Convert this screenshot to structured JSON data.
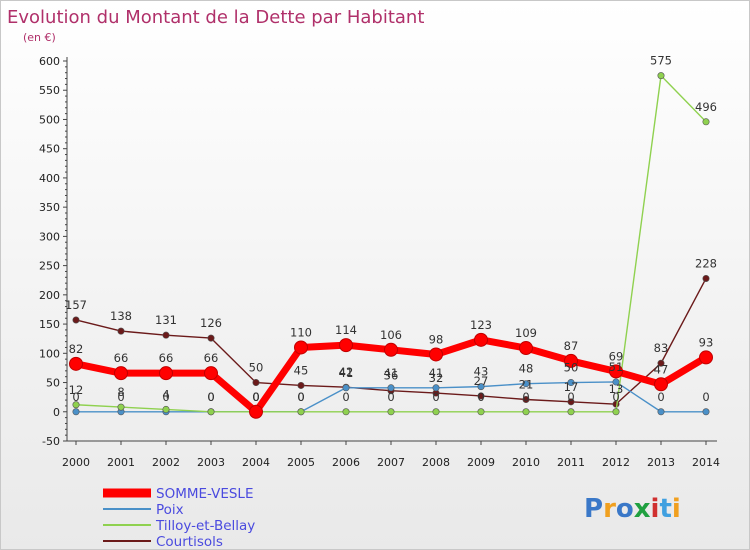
{
  "chart_data": {
    "type": "line",
    "title": "Evolution du Montant de la Dette par Habitant",
    "subtitle": "(en €)",
    "xlabel": "",
    "ylabel": "",
    "x": [
      "2000",
      "2001",
      "2002",
      "2003",
      "2004",
      "2005",
      "2006",
      "2007",
      "2008",
      "2009",
      "2010",
      "2011",
      "2012",
      "2013",
      "2014"
    ],
    "ylim": [
      -50,
      600
    ],
    "yticks": [
      "-50",
      "0",
      "50",
      "100",
      "150",
      "200",
      "250",
      "300",
      "350",
      "400",
      "450",
      "500",
      "550",
      "600"
    ],
    "grid": false,
    "legend_position": "bottom-left",
    "series": [
      {
        "name": "SOMME-VESLE",
        "color": "#ff0000",
        "values": [
          82,
          66,
          66,
          66,
          0,
          110,
          114,
          106,
          98,
          123,
          109,
          87,
          69,
          47,
          93
        ]
      },
      {
        "name": "Poix",
        "color": "#4a90c8",
        "values": [
          0,
          0,
          0,
          0,
          0,
          0,
          41,
          41,
          41,
          43,
          48,
          50,
          51,
          0,
          0
        ]
      },
      {
        "name": "Tilloy-et-Bellay",
        "color": "#8fd14f",
        "values": [
          12,
          8,
          4,
          0,
          0,
          0,
          0,
          0,
          0,
          0,
          0,
          0,
          0,
          575,
          496
        ]
      },
      {
        "name": "Courtisols",
        "color": "#6b1a1a",
        "values": [
          157,
          138,
          131,
          126,
          50,
          45,
          42,
          36,
          32,
          27,
          21,
          17,
          13,
          83,
          228
        ]
      }
    ]
  },
  "brand": {
    "logo_text": "Proxiti",
    "colors": [
      "#3a78c8",
      "#f0a020",
      "#3a78c8",
      "#20a040",
      "#d03030",
      "#40a0e0",
      "#f0a020"
    ]
  }
}
